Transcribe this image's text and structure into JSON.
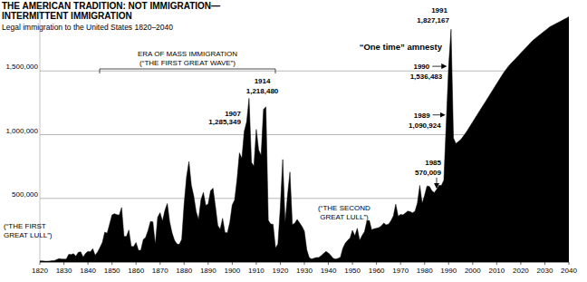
{
  "chart_data": {
    "type": "area",
    "title": "THE AMERICAN TRADITION: NOT IMMIGRATION—\nINTERMITTENT IMMIGRATION",
    "subtitle": "Legal immigration to the United States 1820–2040",
    "color": "#000000",
    "grid": true,
    "x": [
      1820,
      1821,
      1822,
      1823,
      1824,
      1825,
      1826,
      1827,
      1828,
      1829,
      1830,
      1831,
      1832,
      1833,
      1834,
      1835,
      1836,
      1837,
      1838,
      1839,
      1840,
      1841,
      1842,
      1843,
      1844,
      1845,
      1846,
      1847,
      1848,
      1849,
      1850,
      1851,
      1852,
      1853,
      1854,
      1855,
      1856,
      1857,
      1858,
      1859,
      1860,
      1861,
      1862,
      1863,
      1864,
      1865,
      1866,
      1867,
      1868,
      1869,
      1870,
      1871,
      1872,
      1873,
      1874,
      1875,
      1876,
      1877,
      1878,
      1879,
      1880,
      1881,
      1882,
      1883,
      1884,
      1885,
      1886,
      1887,
      1888,
      1889,
      1890,
      1891,
      1892,
      1893,
      1894,
      1895,
      1896,
      1897,
      1898,
      1899,
      1900,
      1901,
      1902,
      1903,
      1904,
      1905,
      1906,
      1907,
      1908,
      1909,
      1910,
      1911,
      1912,
      1913,
      1914,
      1915,
      1916,
      1917,
      1918,
      1919,
      1920,
      1921,
      1922,
      1923,
      1924,
      1925,
      1926,
      1927,
      1928,
      1929,
      1930,
      1931,
      1932,
      1933,
      1934,
      1935,
      1936,
      1937,
      1938,
      1939,
      1940,
      1941,
      1942,
      1943,
      1944,
      1945,
      1946,
      1947,
      1948,
      1949,
      1950,
      1951,
      1952,
      1953,
      1954,
      1955,
      1956,
      1957,
      1958,
      1959,
      1960,
      1961,
      1962,
      1963,
      1964,
      1965,
      1966,
      1967,
      1968,
      1969,
      1970,
      1971,
      1972,
      1973,
      1974,
      1975,
      1976,
      1977,
      1978,
      1979,
      1980,
      1981,
      1982,
      1983,
      1984,
      1985,
      1986,
      1987,
      1988,
      1989,
      1990,
      1991,
      1992,
      1993,
      1994,
      1995,
      1996,
      1997,
      1998,
      1999,
      2000,
      2001,
      2002,
      2003,
      2004,
      2005,
      2006,
      2007,
      2008,
      2009,
      2010,
      2011,
      2012,
      2013,
      2014,
      2015,
      2016,
      2017,
      2018,
      2019,
      2020,
      2021,
      2022,
      2023,
      2024,
      2025,
      2026,
      2027,
      2028,
      2029,
      2030,
      2031,
      2032,
      2033,
      2034,
      2035,
      2036,
      2037,
      2038,
      2039,
      2040
    ],
    "values": [
      8385,
      9127,
      6911,
      6354,
      7912,
      10199,
      10837,
      18875,
      27382,
      22520,
      23322,
      22633,
      60482,
      58640,
      65365,
      45374,
      76242,
      79340,
      38914,
      68069,
      84066,
      80289,
      104565,
      52496,
      78615,
      114371,
      154416,
      234968,
      226527,
      297024,
      369980,
      379466,
      371603,
      368645,
      427833,
      200877,
      200436,
      251306,
      123126,
      121282,
      153640,
      91918,
      91985,
      176282,
      193418,
      248120,
      318568,
      315722,
      138840,
      352768,
      387203,
      321350,
      404806,
      459803,
      313339,
      227498,
      169986,
      141857,
      138469,
      177826,
      457257,
      669431,
      788992,
      603322,
      518592,
      395346,
      334203,
      490109,
      546889,
      444427,
      455302,
      560319,
      579663,
      439730,
      285631,
      258536,
      343267,
      230832,
      229299,
      311715,
      448572,
      487918,
      648743,
      857046,
      812870,
      1026499,
      1100735,
      1285349,
      782870,
      751786,
      1041570,
      878587,
      838172,
      1197892,
      1218480,
      326700,
      298826,
      295403,
      110618,
      141132,
      430001,
      805228,
      309556,
      522919,
      706896,
      294314,
      304488,
      335175,
      307255,
      279678,
      241700,
      97139,
      35576,
      23068,
      29470,
      34956,
      36329,
      50244,
      67895,
      82998,
      70756,
      51776,
      28781,
      23725,
      28551,
      38119,
      108721,
      147292,
      170570,
      188317,
      249187,
      205717,
      265520,
      170434,
      208177,
      237790,
      321625,
      326867,
      253265,
      260686,
      265398,
      271344,
      283763,
      306260,
      292248,
      296697,
      323040,
      361972,
      454448,
      358579,
      373326,
      370478,
      384685,
      400063,
      394861,
      386194,
      398613,
      462315,
      601442,
      460348,
      524295,
      596600,
      594131,
      559763,
      543903,
      570009,
      601708,
      601516,
      643025,
      1090924,
      1536483,
      1827167,
      973977,
      930000,
      945000,
      960000,
      985000,
      1010000,
      1040000,
      1070000,
      1100000,
      1130000,
      1160000,
      1190000,
      1220000,
      1250000,
      1280000,
      1310000,
      1340000,
      1370000,
      1400000,
      1430000,
      1460000,
      1490000,
      1515000,
      1540000,
      1560000,
      1580000,
      1600000,
      1620000,
      1640000,
      1660000,
      1680000,
      1700000,
      1720000,
      1740000,
      1755000,
      1770000,
      1785000,
      1800000,
      1815000,
      1830000,
      1845000,
      1855000,
      1865000,
      1875000,
      1885000,
      1895000,
      1905000,
      1915000,
      1925000
    ],
    "xlim": [
      1820,
      2040
    ],
    "xticks": [
      1820,
      1830,
      1840,
      1850,
      1860,
      1870,
      1880,
      1890,
      1900,
      1910,
      1920,
      1930,
      1940,
      1950,
      1960,
      1970,
      1980,
      1990,
      2000,
      2010,
      2020,
      2030,
      2040
    ],
    "ylim": [
      0,
      2000000
    ],
    "yticks": [
      {
        "value": 500000,
        "label": "500,000"
      },
      {
        "value": 1000000,
        "label": "1,000,000"
      },
      {
        "value": 1500000,
        "label": "1,500,000"
      }
    ],
    "annotations": [
      "ERA OF MASS IMMIGRATION\n(“THE FIRST GREAT WAVE”)",
      "(“THE FIRST\nGREAT LULL”)",
      "(“THE SECOND\nGREAT LULL”)",
      "“One time” amnesty"
    ],
    "point_labels": [
      {
        "x": 1907,
        "label": "1,285,349"
      },
      {
        "x": 1914,
        "label": "1,218,480"
      },
      {
        "x": 1985,
        "label": "570,009"
      },
      {
        "x": 1989,
        "label": "1,090,924"
      },
      {
        "x": 1990,
        "label": "1,536,483"
      },
      {
        "x": 1991,
        "label": "1,827,167"
      }
    ]
  }
}
